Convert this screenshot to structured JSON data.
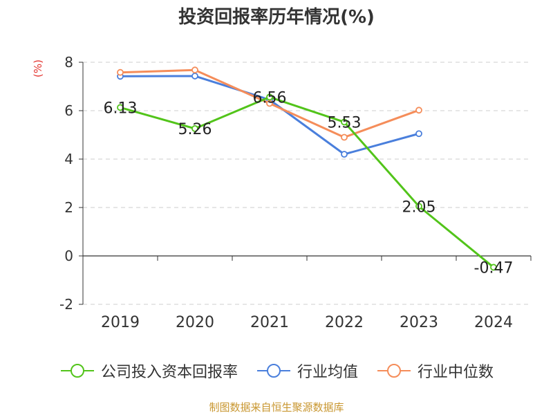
{
  "chart_data": {
    "type": "line",
    "title": "投资回报率历年情况(%)",
    "unit_label": "(%)",
    "categories": [
      "2019",
      "2020",
      "2021",
      "2022",
      "2023",
      "2024"
    ],
    "ylim": [
      -2,
      8
    ],
    "yticks": [
      -2,
      0,
      2,
      4,
      6,
      8
    ],
    "grid": true,
    "legend_position": "bottom",
    "series": [
      {
        "name": "公司投入资本回报率",
        "color": "#52c41a",
        "values": [
          6.13,
          5.26,
          6.56,
          5.53,
          2.05,
          -0.47
        ],
        "labels": [
          "6.13",
          "5.26",
          "6.56",
          "5.53",
          "2.05",
          "-0.47"
        ]
      },
      {
        "name": "行业均值",
        "color": "#4a7fdc",
        "values": [
          7.42,
          7.43,
          6.45,
          4.2,
          5.05,
          null
        ]
      },
      {
        "name": "行业中位数",
        "color": "#f58d5a",
        "values": [
          7.58,
          7.68,
          6.3,
          4.9,
          6.02,
          null
        ]
      }
    ]
  },
  "source": "制图数据来自恒生聚源数据库"
}
